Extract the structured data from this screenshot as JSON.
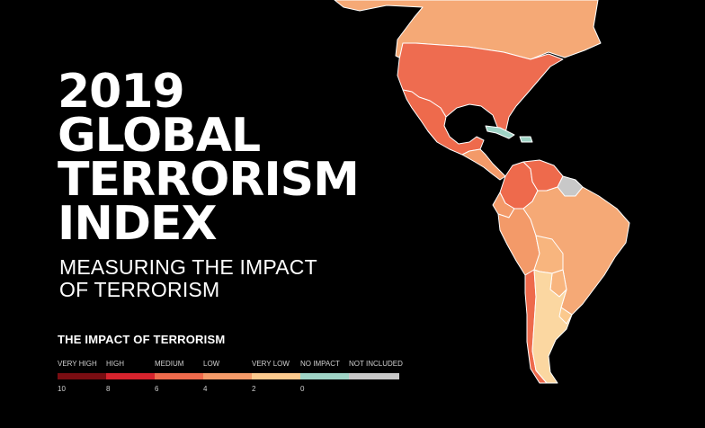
{
  "title": {
    "lines": [
      "2019",
      "GLOBAL",
      "TERRORISM",
      "INDEX"
    ]
  },
  "subtitle": {
    "lines": [
      "MEASURING THE IMPACT",
      "OF TERRORISM"
    ]
  },
  "legend": {
    "title": "THE IMPACT OF TERRORISM",
    "categories": [
      {
        "label": "VERY HIGH",
        "color": "#7a0d12"
      },
      {
        "label": "HIGH",
        "color": "#d6232d"
      },
      {
        "label": "MEDIUM",
        "color": "#ee6a4c"
      },
      {
        "label": "LOW",
        "color": "#f39a69"
      },
      {
        "label": "VERY LOW",
        "color": "#fbc98d"
      },
      {
        "label": "NO IMPACT",
        "color": "#9fd3c5"
      },
      {
        "label": "NOT INCLUDED",
        "color": "#c8c8c8"
      }
    ],
    "ticks": [
      "10",
      "8",
      "6",
      "4",
      "2",
      "0"
    ]
  },
  "map_colors": {
    "canada": "#f5a976",
    "usa": "#ee6c50",
    "mexico": "#ee6a4c",
    "central_america": "#f39a69",
    "colombia": "#ee6a4c",
    "venezuela": "#ee6a4c",
    "ecuador": "#f39a69",
    "peru": "#f39a69",
    "brazil": "#f5a976",
    "bolivia": "#f8b57e",
    "paraguay": "#f8b57e",
    "argentina": "#fbd7a1",
    "chile": "#ee6a4c",
    "uruguay": "#fbc98d",
    "guianas": "#c8c8c8",
    "caribbean": "#9fd3c5",
    "border": "#ffffff"
  }
}
